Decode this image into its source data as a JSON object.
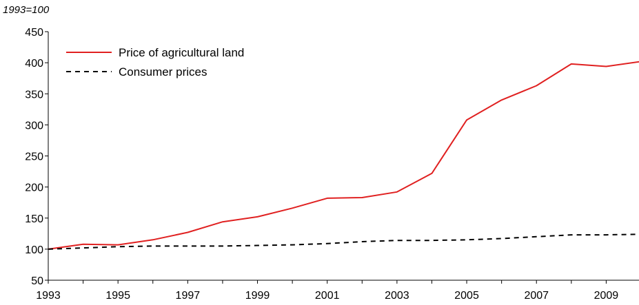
{
  "chart_data": {
    "type": "line",
    "title": "",
    "unit_label": "1993=100",
    "xlabel": "",
    "ylabel": "",
    "x": [
      1993,
      1994,
      1995,
      1996,
      1997,
      1998,
      1999,
      2000,
      2001,
      2002,
      2003,
      2004,
      2005,
      2006,
      2007,
      2008,
      2009,
      2010
    ],
    "x_tick_labels": [
      "1993",
      "1995",
      "1997",
      "1999",
      "2001",
      "2003",
      "2005",
      "2007",
      "2009"
    ],
    "y_tick_labels": [
      "450",
      "400",
      "350",
      "300",
      "250",
      "200",
      "150",
      "100",
      "50"
    ],
    "ylim": [
      50,
      450
    ],
    "xlim": [
      1993,
      2010
    ],
    "grid": false,
    "legend_position": "top-left",
    "series": [
      {
        "name": "Price of agricultural land",
        "color": "#e02020",
        "style": "solid",
        "values": [
          100,
          108,
          107,
          115,
          127,
          144,
          152,
          166,
          182,
          183,
          192,
          222,
          308,
          340,
          363,
          398,
          394,
          402
        ]
      },
      {
        "name": "Consumer prices",
        "color": "#000000",
        "style": "dashed",
        "values": [
          100,
          102,
          104,
          105,
          105,
          105,
          106,
          107,
          109,
          112,
          114,
          114,
          115,
          117,
          120,
          123,
          123,
          124
        ]
      }
    ]
  }
}
